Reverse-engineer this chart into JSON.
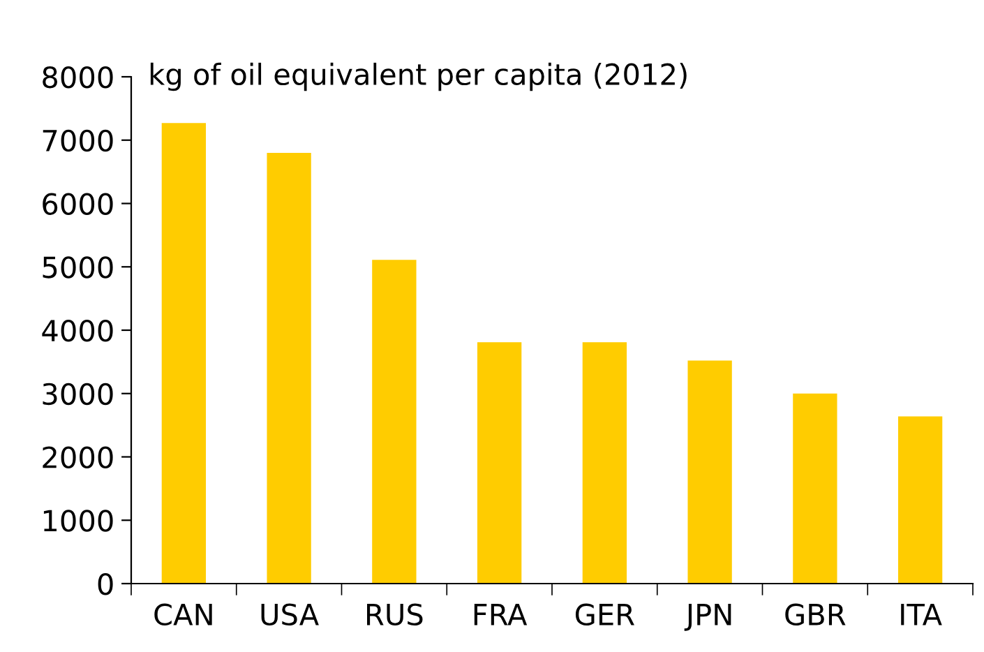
{
  "chart_data": {
    "type": "bar",
    "subtitle": "kg of oil equivalent per capita (2012)",
    "categories": [
      "CAN",
      "USA",
      "RUS",
      "FRA",
      "GER",
      "JPN",
      "GBR",
      "ITA"
    ],
    "values": [
      7270,
      6800,
      5110,
      3810,
      3810,
      3520,
      3000,
      2640
    ],
    "color": "#ffcc00",
    "ylim": [
      0,
      8000
    ],
    "yticks": [
      0,
      1000,
      2000,
      3000,
      4000,
      5000,
      6000,
      7000,
      8000
    ],
    "grid": false,
    "legend": false
  }
}
